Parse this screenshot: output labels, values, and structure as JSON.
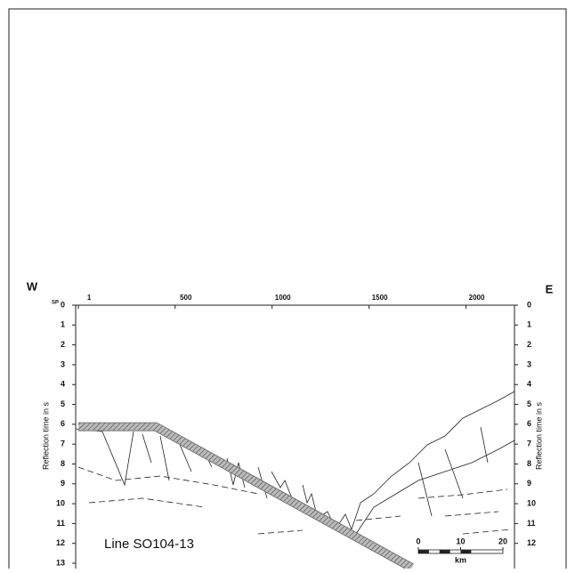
{
  "chart_data": {
    "type": "line",
    "west_label": "W",
    "east_label": "E",
    "x_axis_label": "SP",
    "ylabel": "Reflection time in s",
    "y2label": "Reflection time in s",
    "annotation": "Line SO104-13",
    "scale_bar": {
      "ticks": [
        0,
        10,
        20
      ],
      "unit": "km"
    },
    "x": [
      1,
      400,
      1720
    ],
    "values": [
      5.9,
      5.9,
      13
    ],
    "color": "#777",
    "xlim": [
      -13,
      2250
    ],
    "xticks": [
      1,
      500,
      1000,
      1500,
      2000
    ],
    "ylim": [
      13,
      0
    ],
    "yticks": [
      0,
      1,
      2,
      3,
      4,
      5,
      6,
      7,
      8,
      9,
      10,
      11,
      12,
      13
    ],
    "y2lim": [
      13,
      0
    ],
    "y2ticks": [
      0,
      1,
      2,
      3,
      4,
      5,
      6,
      7,
      8,
      9,
      10,
      11,
      12
    ]
  }
}
